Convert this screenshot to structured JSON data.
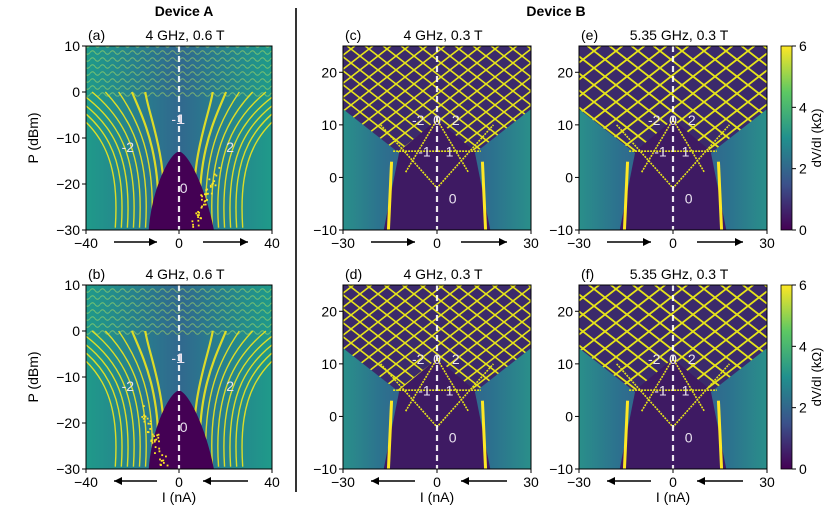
{
  "chart_data": {
    "type": "heatmap",
    "devices": {
      "left": "Device A",
      "right": "Device B"
    },
    "colorbar": {
      "label": "dV/dI (kΩ)",
      "range": [
        0,
        6
      ],
      "ticks": [
        "0",
        "2",
        "4",
        "6"
      ]
    },
    "panels": [
      {
        "id": "a",
        "label": "(a)",
        "title": "4 GHz, 0.6 T",
        "device": "A",
        "xlim": [
          -40,
          40
        ],
        "ylim": [
          -30,
          10
        ],
        "xticks": [
          "−40",
          "0",
          "40"
        ],
        "yticks": [
          "−30",
          "−20",
          "−10",
          "0",
          "10"
        ],
        "ylabel": "P (dBm)",
        "xlabel": "",
        "sweep": "right",
        "regions": [
          "-2",
          "-1",
          "1",
          "2",
          "0"
        ]
      },
      {
        "id": "b",
        "label": "(b)",
        "title": "4 GHz, 0.6 T",
        "device": "A",
        "xlim": [
          -40,
          40
        ],
        "ylim": [
          -30,
          10
        ],
        "xticks": [
          "−40",
          "0",
          "40"
        ],
        "yticks": [
          "−30",
          "−20",
          "−10",
          "0",
          "10"
        ],
        "ylabel": "P (dBm)",
        "xlabel": "I (nA)",
        "sweep": "left",
        "regions": [
          "-2",
          "-1",
          "1",
          "2",
          "0"
        ]
      },
      {
        "id": "c",
        "label": "(c)",
        "title": "4 GHz, 0.3 T",
        "device": "B",
        "xlim": [
          -30,
          30
        ],
        "ylim": [
          -10,
          25
        ],
        "xticks": [
          "−30",
          "0",
          "30"
        ],
        "yticks": [
          "−10",
          "0",
          "10",
          "20"
        ],
        "ylabel": "",
        "xlabel": "",
        "sweep": "right",
        "regions": [
          "-2",
          "0",
          "2",
          "-1",
          "1",
          "0"
        ]
      },
      {
        "id": "d",
        "label": "(d)",
        "title": "4 GHz, 0.3 T",
        "device": "B",
        "xlim": [
          -30,
          30
        ],
        "ylim": [
          -10,
          25
        ],
        "xticks": [
          "−30",
          "0",
          "30"
        ],
        "yticks": [
          "−10",
          "0",
          "10",
          "20"
        ],
        "ylabel": "",
        "xlabel": "I (nA)",
        "sweep": "left",
        "regions": [
          "-2",
          "0",
          "2",
          "-1",
          "1",
          "0"
        ]
      },
      {
        "id": "e",
        "label": "(e)",
        "title": "5.35 GHz, 0.3 T",
        "device": "B",
        "xlim": [
          -30,
          30
        ],
        "ylim": [
          -10,
          25
        ],
        "xticks": [
          "−30",
          "0",
          "30"
        ],
        "yticks": [
          "−10",
          "0",
          "10",
          "20"
        ],
        "ylabel": "",
        "xlabel": "",
        "sweep": "right",
        "regions": [
          "-2",
          "0",
          "2",
          "-1",
          "1",
          "0"
        ]
      },
      {
        "id": "f",
        "label": "(f)",
        "title": "5.35 GHz, 0.3 T",
        "device": "B",
        "xlim": [
          -30,
          30
        ],
        "ylim": [
          -10,
          25
        ],
        "xticks": [
          "−30",
          "0",
          "30"
        ],
        "yticks": [
          "−10",
          "0",
          "10",
          "20"
        ],
        "ylabel": "",
        "xlabel": "I (nA)",
        "sweep": "left",
        "regions": [
          "-2",
          "0",
          "2",
          "-1",
          "1",
          "0"
        ]
      }
    ]
  },
  "colors": {
    "dark": "#440154",
    "mid": "#21908d",
    "bright": "#fde725"
  }
}
